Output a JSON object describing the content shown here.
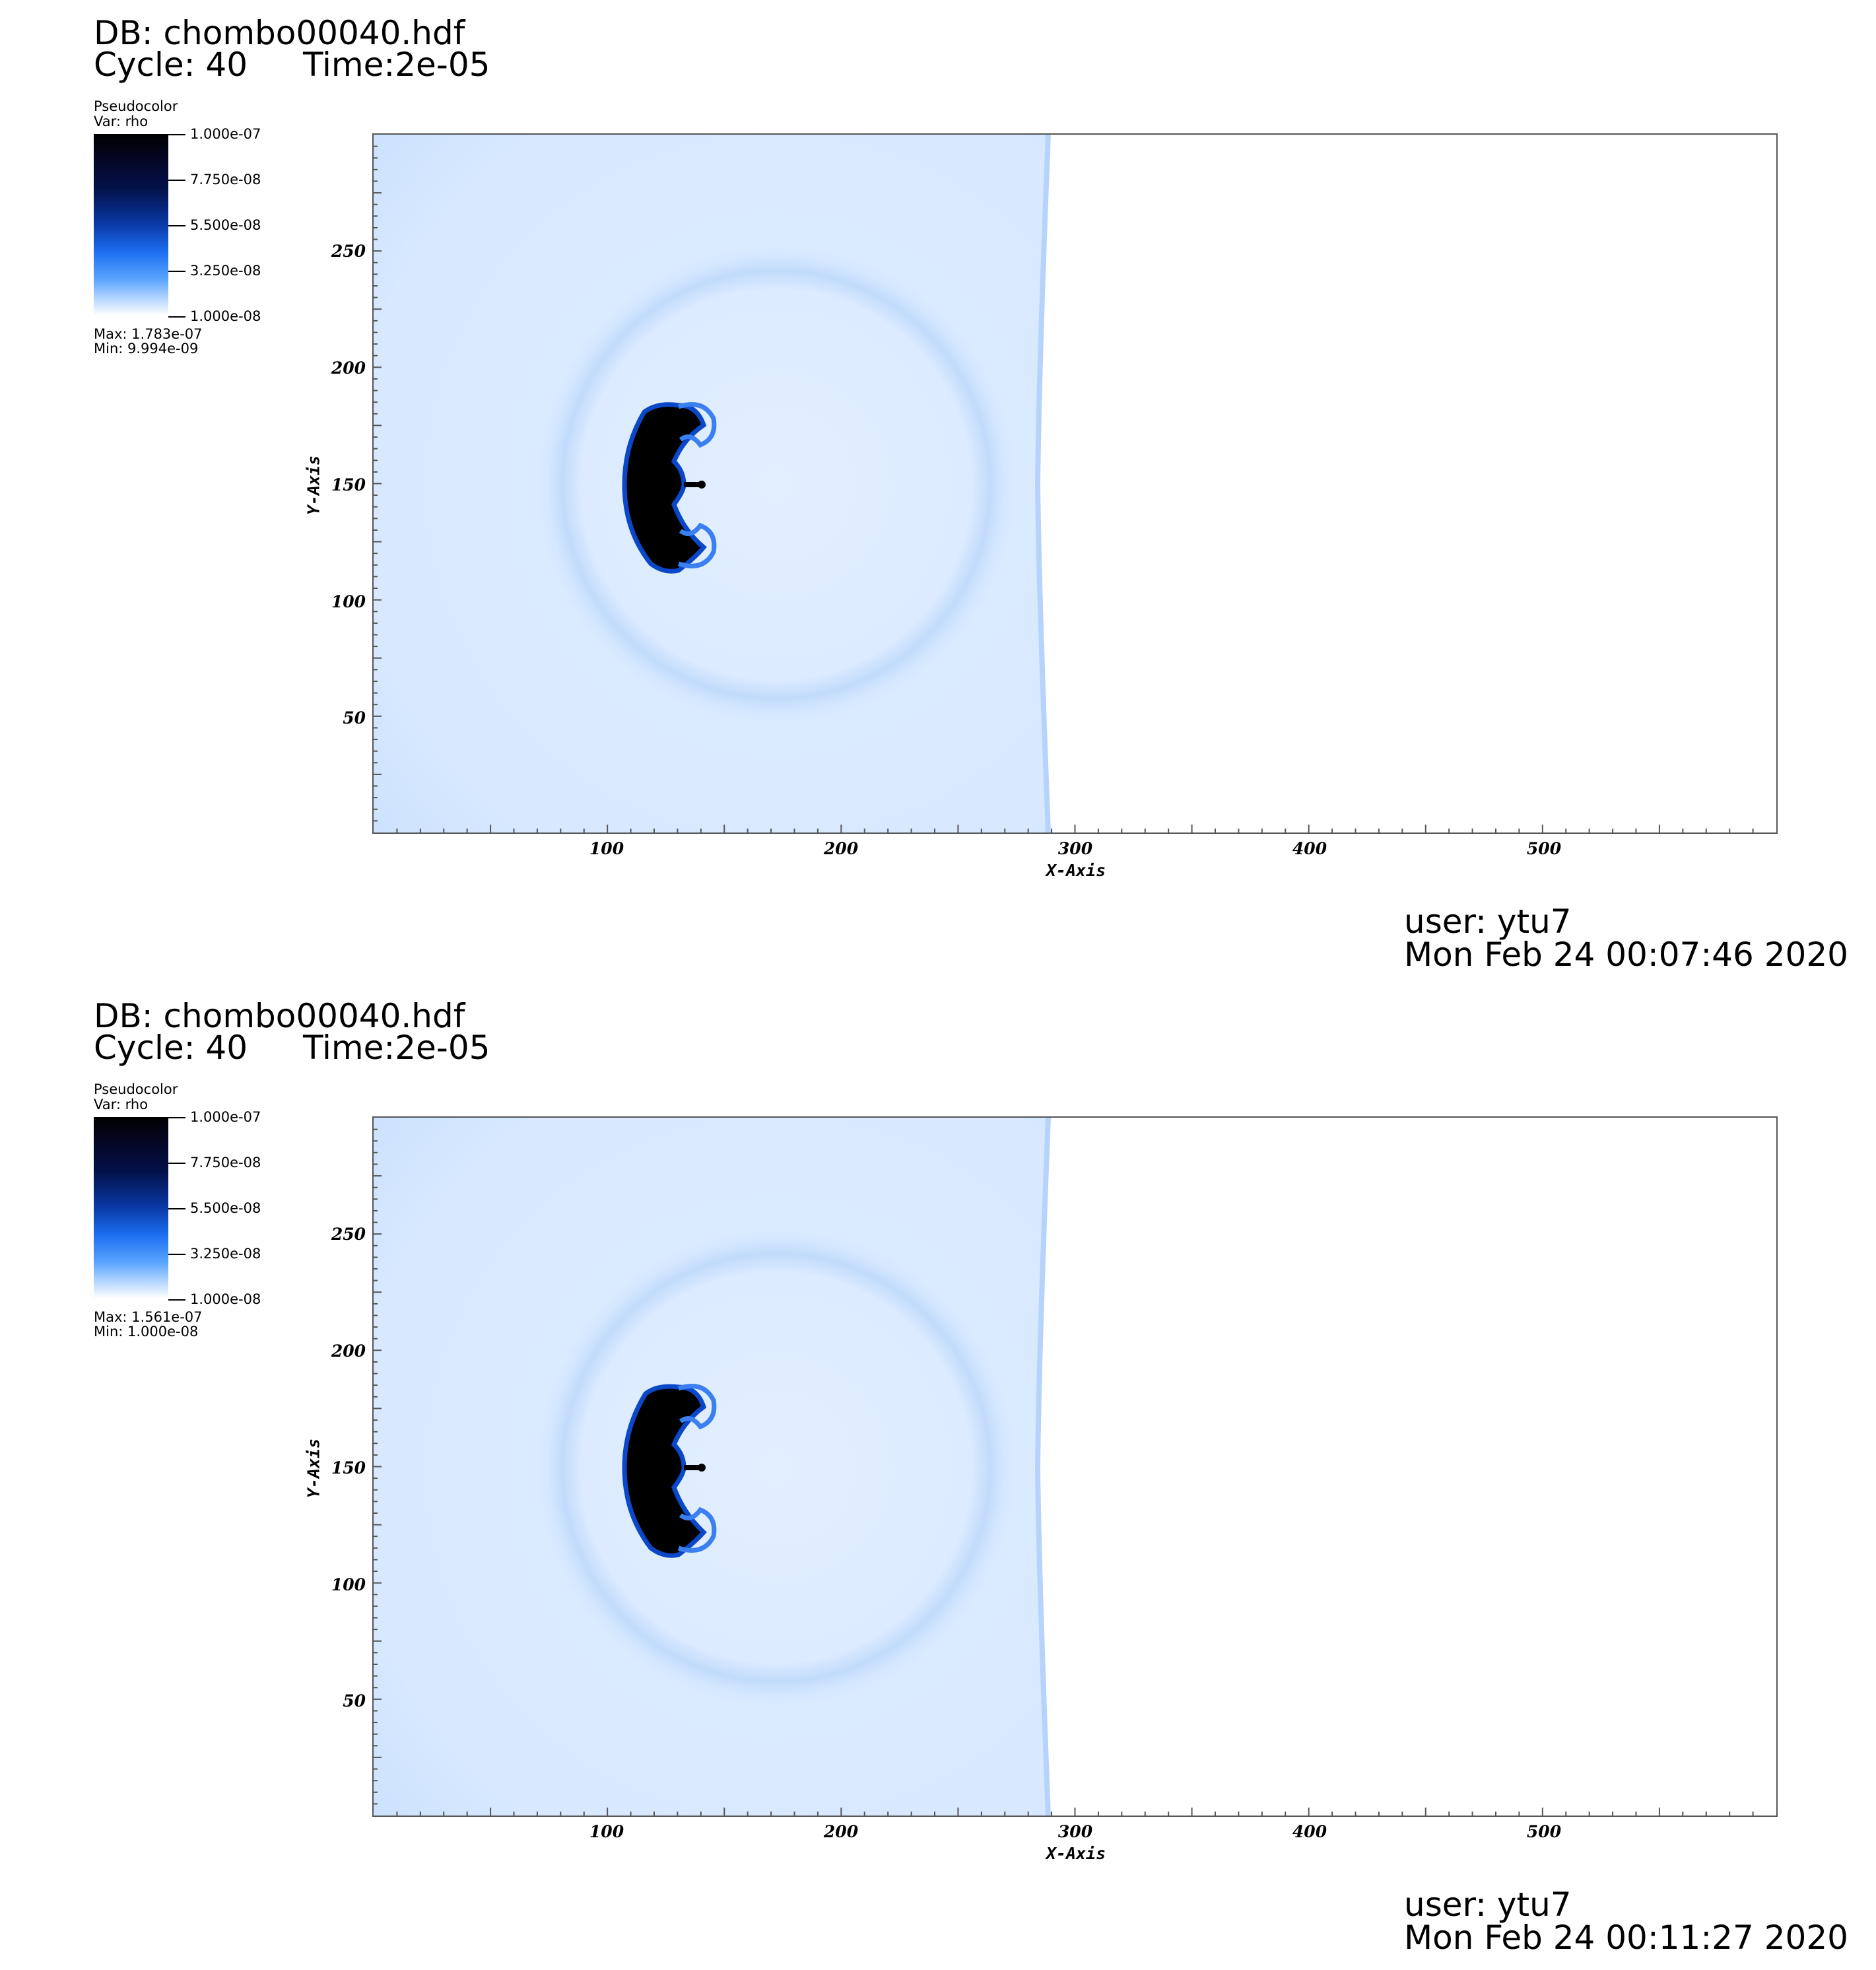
{
  "chart_data": [
    {
      "type": "heatmap",
      "db": "DB: chombo00040.hdf",
      "cycle": "Cycle: 40",
      "time": "Time:2e-05",
      "legend": {
        "title": "Pseudocolor",
        "var": "Var: rho",
        "ticks": [
          "1.000e-07",
          "7.750e-08",
          "5.500e-08",
          "3.250e-08",
          "1.000e-08"
        ],
        "max": "Max:  1.783e-07",
        "min": "Min:  9.994e-09"
      },
      "xlabel": "X-Axis",
      "ylabel": "Y-Axis",
      "xlim": [
        0,
        600
      ],
      "ylim": [
        0,
        300
      ],
      "x_ticks": [
        "100",
        "200",
        "300",
        "400",
        "500"
      ],
      "y_ticks": [
        "50",
        "100",
        "150",
        "200",
        "250"
      ],
      "x_tick_values": [
        100,
        200,
        300,
        400,
        500
      ],
      "y_tick_values": [
        50,
        100,
        150,
        200,
        250
      ],
      "filled_x_max": 290,
      "user": "user: ytu7",
      "date": "Mon Feb 24 00:07:46 2020"
    },
    {
      "type": "heatmap",
      "db": "DB: chombo00040.hdf",
      "cycle": "Cycle: 40",
      "time": "Time:2e-05",
      "legend": {
        "title": "Pseudocolor",
        "var": "Var: rho",
        "ticks": [
          "1.000e-07",
          "7.750e-08",
          "5.500e-08",
          "3.250e-08",
          "1.000e-08"
        ],
        "max": "Max:  1.561e-07",
        "min": "Min:  1.000e-08"
      },
      "xlabel": "X-Axis",
      "ylabel": "Y-Axis",
      "xlim": [
        0,
        600
      ],
      "ylim": [
        0,
        300
      ],
      "x_ticks": [
        "100",
        "200",
        "300",
        "400",
        "500"
      ],
      "y_ticks": [
        "50",
        "100",
        "150",
        "200",
        "250"
      ],
      "x_tick_values": [
        100,
        200,
        300,
        400,
        500
      ],
      "y_tick_values": [
        50,
        100,
        150,
        200,
        250
      ],
      "filled_x_max": 290,
      "user": "user: ytu7",
      "date": "Mon Feb 24 00:11:27 2020"
    }
  ],
  "colors": {
    "background_field": "#d6e8ff",
    "shell": "#bcd7fb",
    "blob_core": "#000000",
    "blob_edge": "#0b48c9",
    "frame": "#555555"
  }
}
